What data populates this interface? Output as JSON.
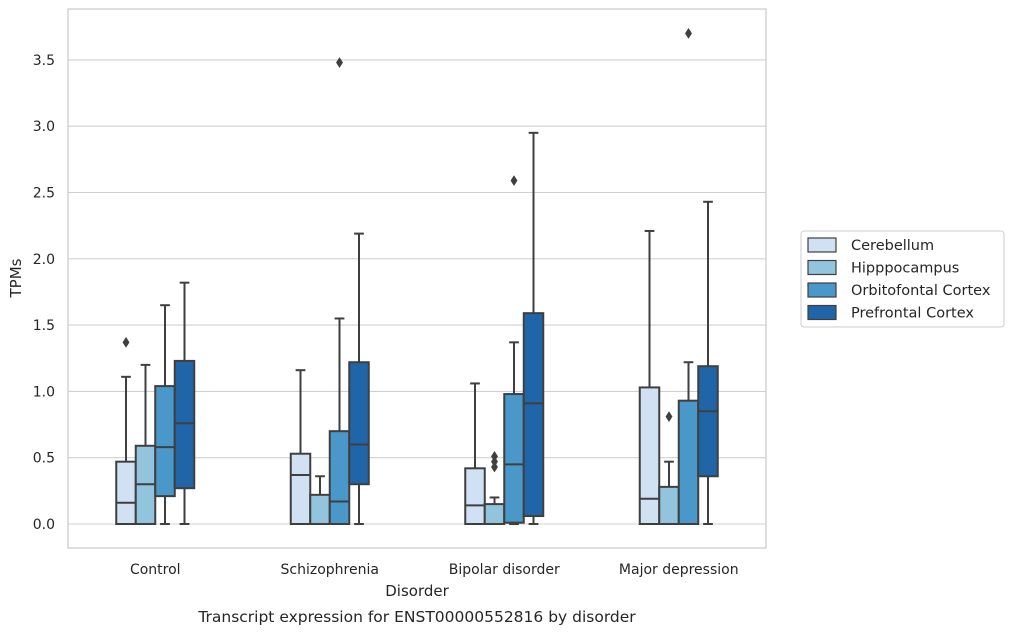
{
  "caption": "Transcript expression for ENST00000552816 by disorder",
  "chart_data": {
    "type": "box",
    "xlabel": "Disorder",
    "ylabel": "TPMs",
    "ylim": [
      -0.18,
      3.9
    ],
    "yticks": [
      0.0,
      0.5,
      1.0,
      1.5,
      2.0,
      2.5,
      3.0,
      3.5
    ],
    "ytick_labels": [
      "0.0",
      "0.5",
      "1.0",
      "1.5",
      "2.0",
      "2.5",
      "3.0",
      "3.5"
    ],
    "grid": "horizontal",
    "legend_placement": "right",
    "categories": [
      "Control",
      "Schizophrenia",
      "Bipolar disorder",
      "Major depression"
    ],
    "series": [
      {
        "name": "Cerebellum",
        "color": "#cfe1f2",
        "boxes": [
          {
            "whislo": 0.0,
            "q1": 0.0,
            "med": 0.16,
            "q3": 0.47,
            "whishi": 1.11,
            "fliers": [
              1.37
            ]
          },
          {
            "whislo": 0.0,
            "q1": 0.0,
            "med": 0.37,
            "q3": 0.53,
            "whishi": 1.16,
            "fliers": []
          },
          {
            "whislo": 0.0,
            "q1": 0.0,
            "med": 0.14,
            "q3": 0.42,
            "whishi": 1.06,
            "fliers": []
          },
          {
            "whislo": 0.0,
            "q1": 0.0,
            "med": 0.19,
            "q3": 1.03,
            "whishi": 2.21,
            "fliers": []
          }
        ]
      },
      {
        "name": "Hipppocampus",
        "color": "#93c4de",
        "boxes": [
          {
            "whislo": 0.0,
            "q1": 0.0,
            "med": 0.3,
            "q3": 0.59,
            "whishi": 1.2,
            "fliers": []
          },
          {
            "whislo": 0.0,
            "q1": 0.0,
            "med": 0.0,
            "q3": 0.22,
            "whishi": 0.36,
            "fliers": []
          },
          {
            "whislo": 0.0,
            "q1": 0.0,
            "med": 0.0,
            "q3": 0.15,
            "whishi": 0.2,
            "fliers": [
              0.43,
              0.47,
              0.51
            ]
          },
          {
            "whislo": 0.0,
            "q1": 0.0,
            "med": 0.0,
            "q3": 0.28,
            "whishi": 0.47,
            "fliers": [
              0.81
            ]
          }
        ]
      },
      {
        "name": "Orbitofontal Cortex",
        "color": "#4a98c9",
        "boxes": [
          {
            "whislo": 0.0,
            "q1": 0.21,
            "med": 0.58,
            "q3": 1.04,
            "whishi": 1.65,
            "fliers": []
          },
          {
            "whislo": 0.0,
            "q1": 0.0,
            "med": 0.17,
            "q3": 0.7,
            "whishi": 1.55,
            "fliers": [
              3.48
            ]
          },
          {
            "whislo": 0.0,
            "q1": 0.01,
            "med": 0.45,
            "q3": 0.98,
            "whishi": 1.37,
            "fliers": [
              2.59
            ]
          },
          {
            "whislo": 0.0,
            "q1": 0.0,
            "med": 0.0,
            "q3": 0.93,
            "whishi": 1.22,
            "fliers": [
              3.7
            ]
          }
        ]
      },
      {
        "name": "Prefrontal Cortex",
        "color": "#2165a9",
        "boxes": [
          {
            "whislo": 0.0,
            "q1": 0.27,
            "med": 0.76,
            "q3": 1.23,
            "whishi": 1.82,
            "fliers": []
          },
          {
            "whislo": 0.0,
            "q1": 0.3,
            "med": 0.6,
            "q3": 1.22,
            "whishi": 2.19,
            "fliers": []
          },
          {
            "whislo": 0.0,
            "q1": 0.06,
            "med": 0.91,
            "q3": 1.59,
            "whishi": 2.95,
            "fliers": []
          },
          {
            "whislo": 0.0,
            "q1": 0.36,
            "med": 0.85,
            "q3": 1.19,
            "whishi": 2.43,
            "fliers": []
          }
        ]
      }
    ]
  }
}
